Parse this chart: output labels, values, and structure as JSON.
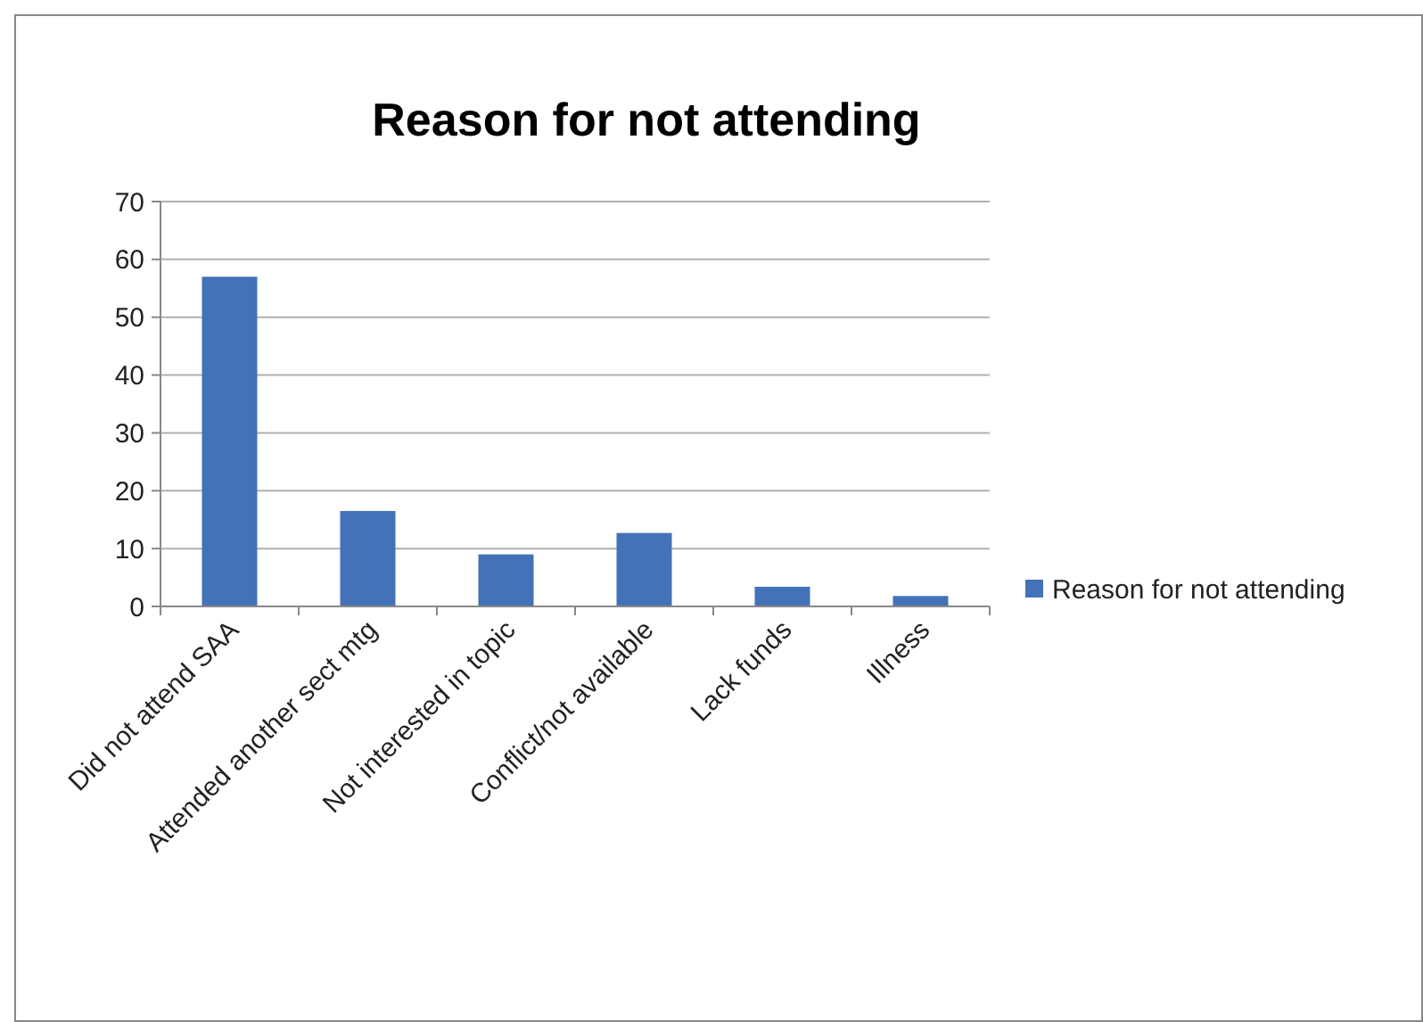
{
  "chart_data": {
    "type": "bar",
    "title": "Reason for not attending",
    "categories": [
      "Did not attend SAA",
      "Attended another sect mtg",
      "Not interested in topic",
      "Conflict/not available",
      "Lack funds",
      "Illness"
    ],
    "series": [
      {
        "name": "Reason for not attending",
        "color": "#4372b8",
        "values": [
          57,
          16.5,
          9,
          12.7,
          3.4,
          1.8
        ]
      }
    ],
    "ylim": [
      0,
      70
    ],
    "yticks": [
      0,
      10,
      20,
      30,
      40,
      50,
      60,
      70
    ],
    "grid": "y",
    "legend": "right"
  }
}
